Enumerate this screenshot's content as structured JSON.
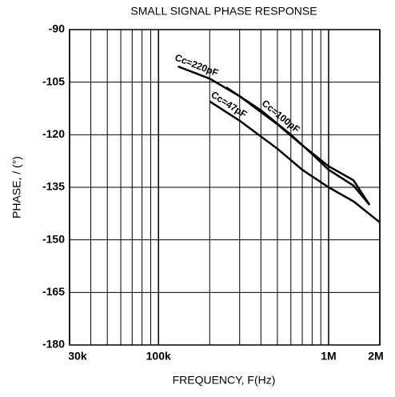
{
  "chart_data": {
    "type": "line",
    "title": "SMALL SIGNAL PHASE RESPONSE",
    "x_label": "FREQUENCY, F(Hz)",
    "y_label": "PHASE, / (°)",
    "xscale": "log",
    "xlim": [
      30000,
      2000000
    ],
    "xticks": [
      {
        "value": 30000,
        "label": "30k"
      },
      {
        "value": 100000,
        "label": "100k"
      },
      {
        "value": 1000000,
        "label": "1M"
      },
      {
        "value": 2000000,
        "label": "2M"
      }
    ],
    "minor_xticks": [
      40000,
      50000,
      60000,
      70000,
      80000,
      90000,
      200000,
      300000,
      400000,
      500000,
      600000,
      700000,
      800000,
      900000
    ],
    "ylim": [
      -180,
      -90
    ],
    "yticks": [
      -180,
      -165,
      -150,
      -135,
      -120,
      -105,
      -90
    ],
    "grid": true,
    "series": [
      {
        "name": "Cc=220pF",
        "color": "#000000",
        "x": [
          130000,
          200000,
          300000,
          500000,
          700000,
          1000000,
          1400000,
          1740000
        ],
        "values": [
          -100.5,
          -104,
          -109,
          -117,
          -123,
          -129,
          -133,
          -140
        ]
      },
      {
        "name": "Cc=100pF",
        "color": "#000000",
        "x": [
          250000,
          400000,
          600000,
          800000,
          1000000,
          1400000,
          1740000
        ],
        "values": [
          -106.5,
          -113,
          -120,
          -125.5,
          -130,
          -134.5,
          -140
        ]
      },
      {
        "name": "Cc=47pF",
        "color": "#000000",
        "x": [
          200000,
          300000,
          500000,
          700000,
          1000000,
          1400000,
          2000000
        ],
        "values": [
          -110.5,
          -116,
          -124,
          -130,
          -135,
          -139,
          -145
        ]
      }
    ]
  }
}
